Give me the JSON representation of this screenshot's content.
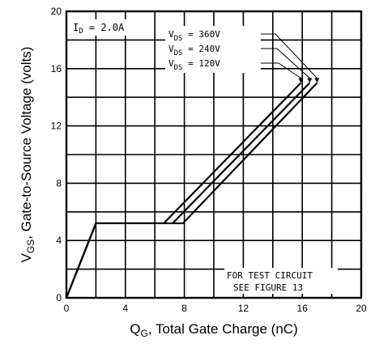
{
  "chart_data": {
    "type": "line",
    "xlabel": {
      "main": "Q",
      "sub": "G",
      "rest": ", Total Gate Charge (nC)"
    },
    "ylabel": {
      "main": "V",
      "sub": "GS",
      "rest": ", Gate-to-Source Voltage (volts)"
    },
    "xlim": [
      0,
      20
    ],
    "ylim": [
      0,
      20
    ],
    "xticks": [
      0,
      4,
      8,
      12,
      16,
      20
    ],
    "yticks": [
      0,
      4,
      8,
      12,
      16,
      20
    ],
    "grid": true,
    "condition": {
      "main": "I",
      "sub": "D",
      "rest": " = 2.0A"
    },
    "note": [
      "FOR TEST CIRCUIT",
      "SEE FIGURE 13"
    ],
    "series": [
      {
        "label": {
          "main": "V",
          "sub": "DS",
          "rest": " = 360V"
        },
        "x": [
          0,
          2.0,
          7.9,
          17.0
        ],
        "y": [
          0,
          5.2,
          5.2,
          15.0
        ]
      },
      {
        "label": {
          "main": "V",
          "sub": "DS",
          "rest": " = 240V"
        },
        "x": [
          0,
          2.0,
          7.2,
          16.5
        ],
        "y": [
          0,
          5.2,
          5.2,
          15.0
        ]
      },
      {
        "label": {
          "main": "V",
          "sub": "DS",
          "rest": " = 120V"
        },
        "x": [
          0,
          2.0,
          6.6,
          15.9
        ],
        "y": [
          0,
          5.2,
          5.2,
          15.0
        ]
      }
    ]
  }
}
